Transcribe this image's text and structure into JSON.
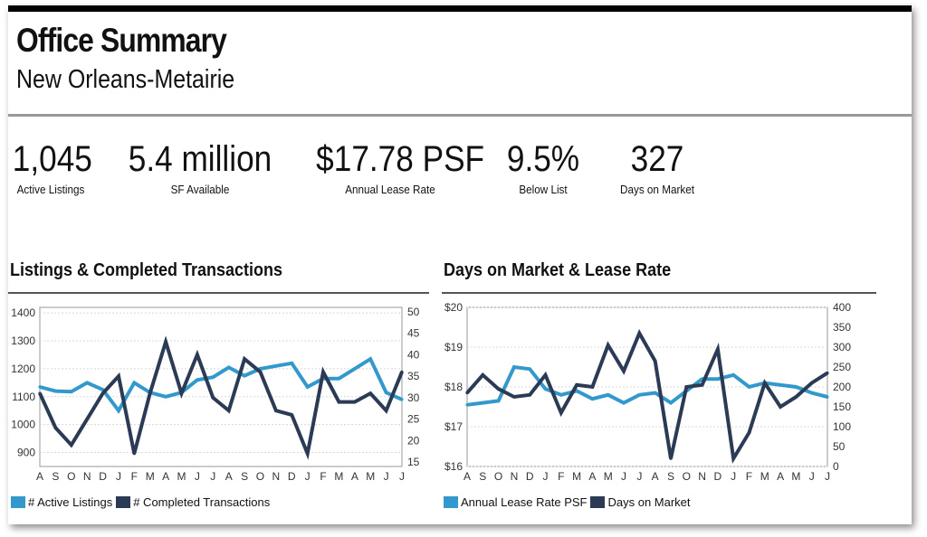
{
  "header": {
    "title": "Office Summary",
    "subtitle": "New Orleans-Metairie"
  },
  "stats": [
    {
      "value": "1,045",
      "label": "Active Listings"
    },
    {
      "value": "5.4 million",
      "label": "SF Available"
    },
    {
      "value": "$17.78 PSF",
      "label": "Annual Lease Rate"
    },
    {
      "value": "9.5%",
      "label": "Below List"
    },
    {
      "value": "327",
      "label": "Days on Market"
    }
  ],
  "colors": {
    "light": "#3399cc",
    "dark": "#2b3a55",
    "grid": "#cccccc"
  },
  "chart_data": [
    {
      "type": "line",
      "title": "Listings & Completed Transactions",
      "categories": [
        "A",
        "S",
        "O",
        "N",
        "D",
        "J",
        "F",
        "M",
        "A",
        "M",
        "J",
        "J",
        "A",
        "S",
        "O",
        "N",
        "D",
        "J",
        "F",
        "M",
        "A",
        "M",
        "J",
        "J"
      ],
      "left_axis": {
        "ylim": [
          850,
          1420
        ],
        "ticks": [
          900,
          1000,
          1100,
          1200,
          1300,
          1400
        ]
      },
      "right_axis": {
        "ylim": [
          14,
          51
        ],
        "ticks": [
          15,
          20,
          25,
          30,
          35,
          40,
          45,
          50
        ]
      },
      "grid": true,
      "legend_position": "bottom-left",
      "series": [
        {
          "name": "# Active Listings",
          "axis": "left",
          "color": "light",
          "values": [
            1135,
            1120,
            1118,
            1150,
            1125,
            1050,
            1150,
            1115,
            1100,
            1115,
            1160,
            1170,
            1205,
            1175,
            1200,
            1210,
            1220,
            1135,
            1165,
            1165,
            1200,
            1235,
            1115,
            1090
          ]
        },
        {
          "name": "# Completed Transactions",
          "axis": "right",
          "color": "dark",
          "values": [
            31,
            23,
            19,
            25,
            31,
            35,
            17,
            31,
            43,
            31,
            40,
            30,
            27,
            39,
            36,
            27,
            26,
            17,
            36,
            29,
            29,
            31,
            27,
            36
          ]
        }
      ]
    },
    {
      "type": "line",
      "title": "Days on Market & Lease Rate",
      "categories": [
        "A",
        "S",
        "O",
        "N",
        "D",
        "J",
        "F",
        "M",
        "A",
        "M",
        "J",
        "J",
        "A",
        "S",
        "O",
        "N",
        "D",
        "J",
        "F",
        "M",
        "A",
        "M",
        "J",
        "J"
      ],
      "left_axis": {
        "ylim": [
          16,
          20
        ],
        "ticks": [
          "$16",
          "$17",
          "$18",
          "$19",
          "$20"
        ]
      },
      "right_axis": {
        "ylim": [
          0,
          400
        ],
        "ticks": [
          0,
          50,
          100,
          150,
          200,
          250,
          300,
          350,
          400
        ]
      },
      "grid": true,
      "legend_position": "bottom-left",
      "series": [
        {
          "name": "Annual Lease Rate PSF",
          "axis": "left",
          "color": "light",
          "values": [
            17.55,
            17.6,
            17.65,
            18.5,
            18.45,
            17.95,
            17.8,
            17.9,
            17.7,
            17.8,
            17.6,
            17.8,
            17.85,
            17.6,
            17.9,
            18.2,
            18.2,
            18.3,
            18.0,
            18.1,
            18.05,
            18.0,
            17.85,
            17.75
          ]
        },
        {
          "name": "Days on Market",
          "axis": "right",
          "color": "dark",
          "values": [
            185,
            230,
            195,
            175,
            180,
            230,
            135,
            205,
            200,
            305,
            240,
            335,
            265,
            20,
            200,
            205,
            295,
            20,
            85,
            210,
            150,
            175,
            210,
            235
          ]
        }
      ]
    }
  ]
}
